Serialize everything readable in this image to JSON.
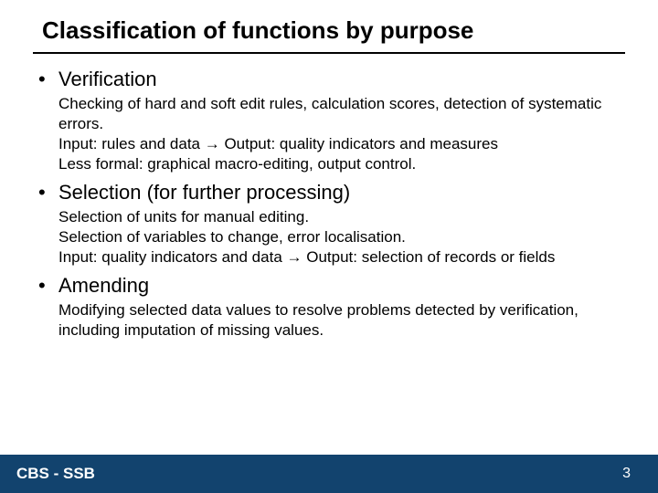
{
  "title": "Classification of functions by purpose",
  "bullets": [
    {
      "heading": "Verification",
      "lines": [
        "Checking of hard and soft edit rules, calculation scores, detection of systematic errors.",
        "Input: rules and data → Output: quality indicators and measures",
        "Less formal: graphical macro-editing, output control."
      ]
    },
    {
      "heading": "Selection (for further processing)",
      "lines": [
        "Selection of units for manual editing.",
        "Selection of variables to change, error localisation.",
        "Input: quality indicators and data → Output: selection of records or fields"
      ]
    },
    {
      "heading": "Amending",
      "lines": [
        "Modifying selected data values to resolve problems detected by verification, including imputation of missing values."
      ]
    }
  ],
  "footer": {
    "left": "CBS - SSB",
    "page": "3"
  },
  "colors": {
    "footer_bg": "#12436e",
    "footer_text": "#ffffff",
    "text": "#000000",
    "background": "#ffffff"
  }
}
